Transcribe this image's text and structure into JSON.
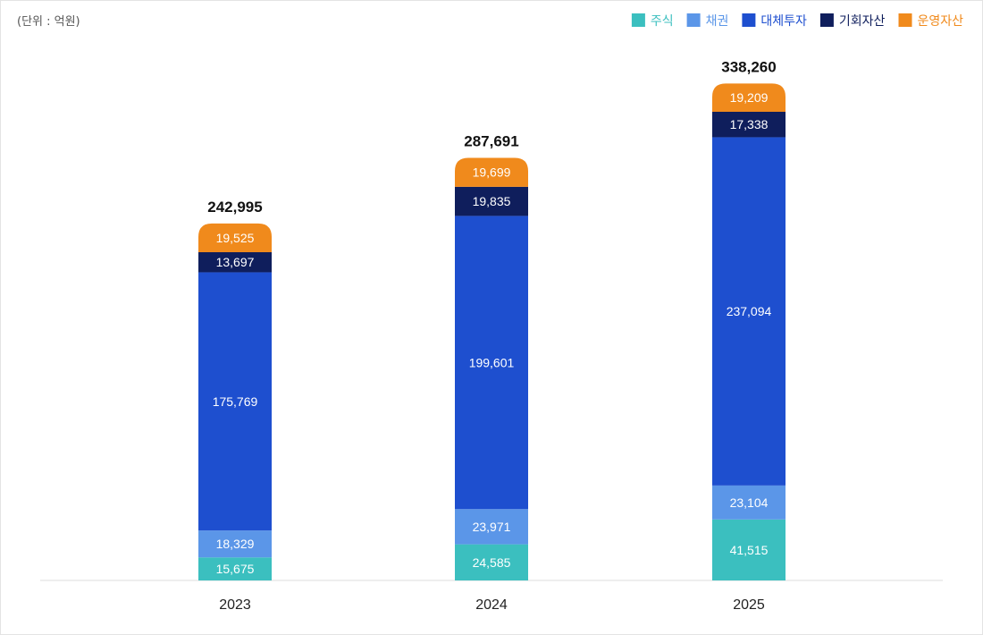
{
  "unit_note": "(단위 : 억원)",
  "chart_data": {
    "type": "bar",
    "stacked": true,
    "categories": [
      "2023",
      "2024",
      "2025"
    ],
    "series": [
      {
        "name": "주식",
        "color": "#3bbfbf",
        "values": [
          15675,
          24585,
          41515
        ],
        "labels": [
          "15,675",
          "24,585",
          "41,515"
        ]
      },
      {
        "name": "채권",
        "color": "#5b96e8",
        "values": [
          18329,
          23971,
          23104
        ],
        "labels": [
          "18,329",
          "23,971",
          "23,104"
        ]
      },
      {
        "name": "대체투자",
        "color": "#1e4fcf",
        "values": [
          175769,
          199601,
          237094
        ],
        "labels": [
          "175,769",
          "199,601",
          "237,094"
        ]
      },
      {
        "name": "기회자산",
        "color": "#0f1e5c",
        "values": [
          13697,
          19835,
          17338
        ],
        "labels": [
          "13,697",
          "19,835",
          "17,338"
        ]
      },
      {
        "name": "운영자산",
        "color": "#f08a1c",
        "values": [
          19525,
          19699,
          19209
        ],
        "labels": [
          "19,525",
          "19,699",
          "19,209"
        ]
      }
    ],
    "totals": [
      242995,
      287691,
      338260
    ],
    "total_labels": [
      "242,995",
      "287,691",
      "338,260"
    ],
    "legend_position": "top-right",
    "grid": false,
    "ylim": [
      0,
      358000
    ],
    "xlabel": "",
    "ylabel": ""
  }
}
